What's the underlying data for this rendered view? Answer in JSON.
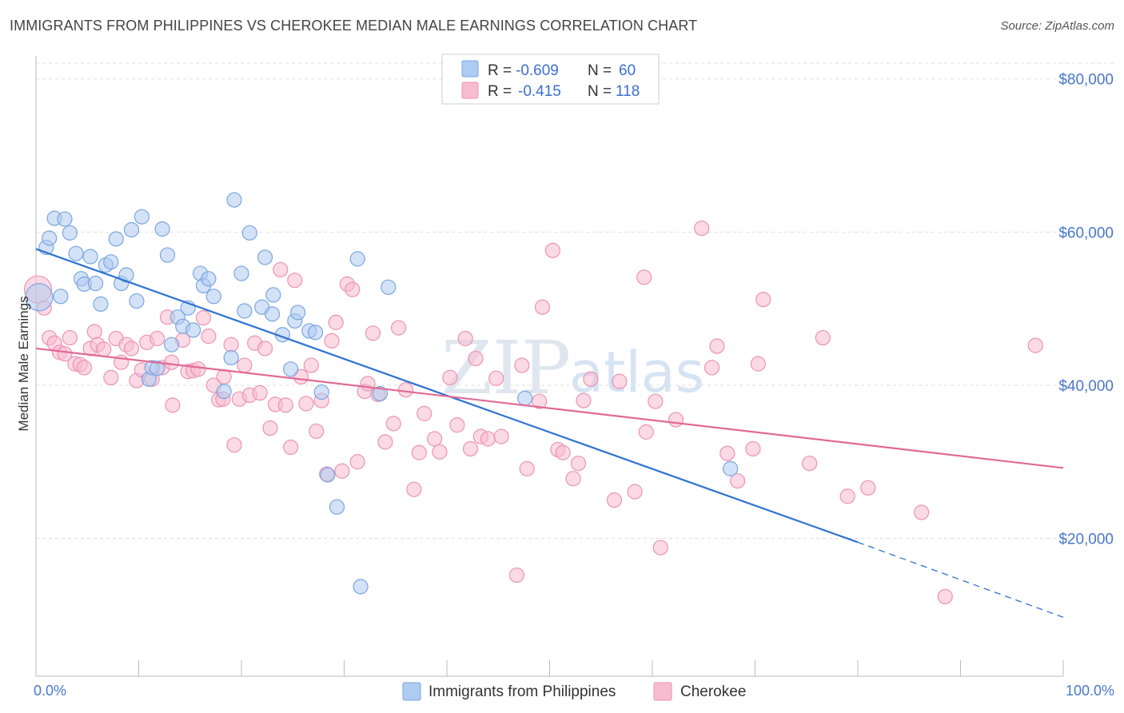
{
  "title": "IMMIGRANTS FROM PHILIPPINES VS CHEROKEE MEDIAN MALE EARNINGS CORRELATION CHART",
  "source": "Source: ZipAtlas.com",
  "watermark": {
    "zip": "ZIP",
    "atlas": "atlas"
  },
  "legend": {
    "r_label": "R =",
    "n_label": "N =",
    "rows": [
      {
        "r": "-0.609",
        "n": "60"
      },
      {
        "r": "-0.415",
        "n": "118"
      }
    ]
  },
  "colors": {
    "blue_fill": "#aecbf1",
    "blue_stroke": "#7aa6e0",
    "blue_line": "#2f72d2",
    "pink_fill": "#f7bcd0",
    "pink_stroke": "#ec93b3",
    "pink_line": "#e06a93",
    "grid": "#dddddd",
    "tick_text": "#4a78c8"
  },
  "chart_data": {
    "type": "scatter",
    "title": "IMMIGRANTS FROM PHILIPPINES VS CHEROKEE MEDIAN MALE EARNINGS CORRELATION CHART",
    "xlabel": "",
    "ylabel": "Median Male Earnings",
    "xlim": [
      0,
      100
    ],
    "ylim": [
      2000,
      83000
    ],
    "x_tick_labels": [
      "0.0%",
      "100.0%"
    ],
    "y_ticks": [
      20000,
      40000,
      60000,
      80000
    ],
    "y_tick_labels": [
      "$20,000",
      "$40,000",
      "$60,000",
      "$80,000"
    ],
    "grid": "horizontal dashed",
    "legend_position": "top-center",
    "series": [
      {
        "name": "Immigrants from Philippines",
        "color": "#aecbf1",
        "trend": {
          "x": [
            0,
            80
          ],
          "y": [
            57800,
            19500
          ],
          "dashed_extension_to": [
            100,
            9700
          ]
        },
        "points": [
          [
            0.3,
            51500
          ],
          [
            1,
            58000
          ],
          [
            1.3,
            59200
          ],
          [
            1.8,
            61800
          ],
          [
            2.4,
            51600
          ],
          [
            2.8,
            61700
          ],
          [
            3.3,
            59900
          ],
          [
            3.9,
            57200
          ],
          [
            4.4,
            53900
          ],
          [
            4.7,
            53200
          ],
          [
            5.3,
            56800
          ],
          [
            5.8,
            53300
          ],
          [
            6.3,
            50600
          ],
          [
            6.8,
            55700
          ],
          [
            7.3,
            56100
          ],
          [
            7.8,
            59100
          ],
          [
            8.3,
            53300
          ],
          [
            8.8,
            54400
          ],
          [
            9.3,
            60300
          ],
          [
            9.8,
            51000
          ],
          [
            10.3,
            62000
          ],
          [
            11.0,
            40800
          ],
          [
            11.3,
            42300
          ],
          [
            11.8,
            42200
          ],
          [
            12.3,
            60400
          ],
          [
            12.8,
            57000
          ],
          [
            13.2,
            45300
          ],
          [
            13.8,
            48900
          ],
          [
            14.3,
            47700
          ],
          [
            14.8,
            50100
          ],
          [
            15.3,
            47200
          ],
          [
            16.0,
            54600
          ],
          [
            16.3,
            53000
          ],
          [
            16.8,
            53900
          ],
          [
            17.3,
            51600
          ],
          [
            18.3,
            39200
          ],
          [
            19.0,
            43600
          ],
          [
            19.3,
            64200
          ],
          [
            20.0,
            54600
          ],
          [
            20.3,
            49700
          ],
          [
            20.8,
            59900
          ],
          [
            22.0,
            50200
          ],
          [
            22.3,
            56700
          ],
          [
            23.0,
            49300
          ],
          [
            23.1,
            51800
          ],
          [
            24.0,
            46600
          ],
          [
            24.8,
            42100
          ],
          [
            25.2,
            48400
          ],
          [
            25.5,
            49500
          ],
          [
            26.6,
            47100
          ],
          [
            27.2,
            46900
          ],
          [
            27.8,
            39100
          ],
          [
            28.4,
            28300
          ],
          [
            29.3,
            24100
          ],
          [
            31.3,
            56500
          ],
          [
            31.6,
            13700
          ],
          [
            33.5,
            38900
          ],
          [
            34.3,
            52800
          ],
          [
            47.6,
            38300
          ],
          [
            67.6,
            29100
          ]
        ]
      },
      {
        "name": "Cherokee",
        "color": "#f7bcd0",
        "trend": {
          "x": [
            0,
            100
          ],
          "y": [
            44800,
            29200
          ]
        },
        "points": [
          [
            0.2,
            52500
          ],
          [
            0.8,
            50100
          ],
          [
            1.3,
            46200
          ],
          [
            1.8,
            45500
          ],
          [
            2.3,
            44300
          ],
          [
            2.8,
            44100
          ],
          [
            3.3,
            46200
          ],
          [
            3.8,
            42800
          ],
          [
            4.3,
            42700
          ],
          [
            4.7,
            42300
          ],
          [
            5.3,
            44800
          ],
          [
            5.7,
            47000
          ],
          [
            6.0,
            45300
          ],
          [
            6.6,
            44700
          ],
          [
            7.3,
            41000
          ],
          [
            7.8,
            46100
          ],
          [
            8.3,
            43000
          ],
          [
            8.8,
            45300
          ],
          [
            9.3,
            44800
          ],
          [
            9.8,
            40600
          ],
          [
            10.3,
            42000
          ],
          [
            10.8,
            45600
          ],
          [
            11.3,
            40800
          ],
          [
            11.8,
            46100
          ],
          [
            12.3,
            42300
          ],
          [
            12.8,
            48900
          ],
          [
            13.2,
            43000
          ],
          [
            13.3,
            37400
          ],
          [
            14.3,
            45900
          ],
          [
            14.8,
            41800
          ],
          [
            15.3,
            41900
          ],
          [
            15.8,
            42100
          ],
          [
            16.3,
            48800
          ],
          [
            16.8,
            46400
          ],
          [
            17.3,
            40000
          ],
          [
            17.8,
            38100
          ],
          [
            18.2,
            38200
          ],
          [
            18.3,
            41100
          ],
          [
            19.0,
            45300
          ],
          [
            19.3,
            32200
          ],
          [
            19.8,
            38200
          ],
          [
            20.3,
            42600
          ],
          [
            20.8,
            38700
          ],
          [
            21.3,
            45500
          ],
          [
            21.8,
            39000
          ],
          [
            22.3,
            44800
          ],
          [
            22.8,
            34400
          ],
          [
            23.3,
            37500
          ],
          [
            23.8,
            55100
          ],
          [
            24.3,
            37400
          ],
          [
            24.8,
            31900
          ],
          [
            25.2,
            53700
          ],
          [
            25.8,
            41100
          ],
          [
            26.3,
            37600
          ],
          [
            26.8,
            42600
          ],
          [
            27.3,
            34000
          ],
          [
            27.8,
            38000
          ],
          [
            28.3,
            28400
          ],
          [
            28.8,
            45800
          ],
          [
            29.2,
            48200
          ],
          [
            29.8,
            28800
          ],
          [
            30.3,
            53200
          ],
          [
            30.8,
            52500
          ],
          [
            31.3,
            30000
          ],
          [
            32.0,
            39200
          ],
          [
            32.3,
            40200
          ],
          [
            32.8,
            46800
          ],
          [
            33.3,
            38800
          ],
          [
            34.0,
            32600
          ],
          [
            34.8,
            35000
          ],
          [
            35.3,
            47500
          ],
          [
            36.0,
            39400
          ],
          [
            36.8,
            26400
          ],
          [
            37.3,
            31200
          ],
          [
            37.8,
            36300
          ],
          [
            38.8,
            33000
          ],
          [
            39.3,
            31300
          ],
          [
            40.3,
            41000
          ],
          [
            41.0,
            34800
          ],
          [
            41.8,
            46100
          ],
          [
            42.3,
            31700
          ],
          [
            42.8,
            43500
          ],
          [
            43.3,
            33300
          ],
          [
            44.0,
            33000
          ],
          [
            44.8,
            40900
          ],
          [
            45.3,
            33300
          ],
          [
            46.8,
            15200
          ],
          [
            47.3,
            42600
          ],
          [
            47.8,
            29100
          ],
          [
            49.0,
            37900
          ],
          [
            49.3,
            50200
          ],
          [
            50.3,
            57600
          ],
          [
            50.8,
            31600
          ],
          [
            51.3,
            31200
          ],
          [
            52.3,
            27800
          ],
          [
            52.8,
            29800
          ],
          [
            53.3,
            38000
          ],
          [
            54.0,
            40800
          ],
          [
            56.3,
            25000
          ],
          [
            56.8,
            40500
          ],
          [
            58.3,
            26100
          ],
          [
            59.2,
            54100
          ],
          [
            59.4,
            33900
          ],
          [
            60.3,
            37900
          ],
          [
            60.8,
            18800
          ],
          [
            62.3,
            35500
          ],
          [
            64.8,
            60500
          ],
          [
            65.8,
            42300
          ],
          [
            66.3,
            45100
          ],
          [
            67.3,
            31100
          ],
          [
            68.3,
            27500
          ],
          [
            69.8,
            31700
          ],
          [
            70.3,
            42800
          ],
          [
            70.8,
            51200
          ],
          [
            75.3,
            29800
          ],
          [
            76.6,
            46200
          ],
          [
            79.0,
            25500
          ],
          [
            81.0,
            26600
          ],
          [
            86.2,
            23400
          ],
          [
            88.5,
            12400
          ],
          [
            97.3,
            45200
          ]
        ]
      }
    ]
  }
}
